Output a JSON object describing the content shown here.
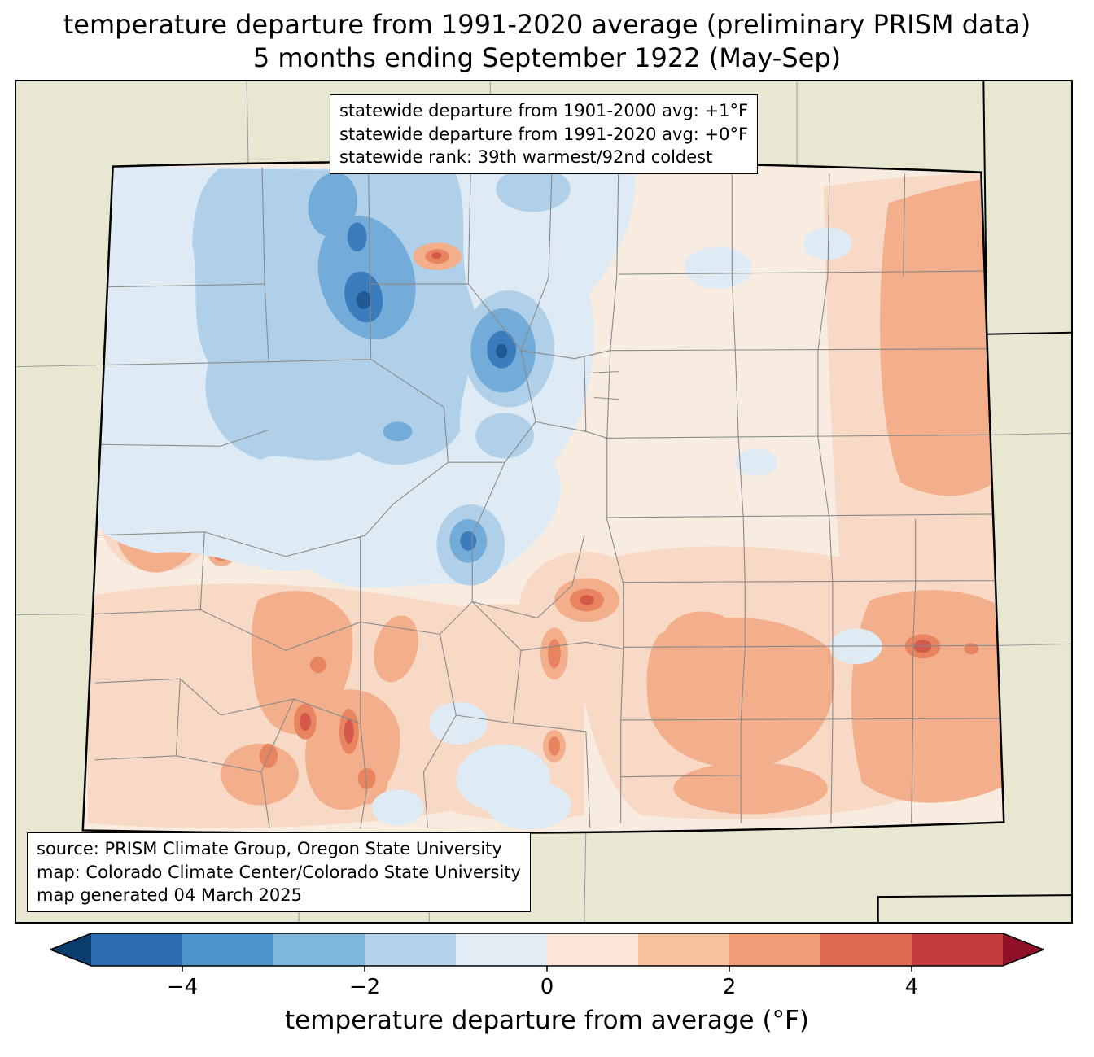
{
  "title": {
    "line1": "temperature departure from 1991-2020 average (preliminary PRISM data)",
    "line2": "5 months ending September 1922 (May-Sep)"
  },
  "stats_box": {
    "lines": [
      "statewide departure from 1901-2000 avg: +1°F",
      "statewide departure from 1991-2020 avg: +0°F",
      "statewide rank: 39th warmest/92nd coldest"
    ]
  },
  "source_box": {
    "lines": [
      "source: PRISM Climate Group, Oregon State University",
      "map: Colorado Climate Center/Colorado State University",
      "map generated 04 March 2025"
    ]
  },
  "colorbar": {
    "label": "temperature departure from average (°F)",
    "ticks": [
      "−4",
      "−2",
      "0",
      "2",
      "4"
    ],
    "tick_values": [
      -4,
      -2,
      0,
      2,
      4
    ],
    "range": [
      -5,
      5
    ],
    "segment_colors": [
      "#2b6cb3",
      "#4b93c9",
      "#7db8da",
      "#b3d3ea",
      "#e1ecf5",
      "#fbe5d6",
      "#f8c29f",
      "#f09c76",
      "#de6a51",
      "#c43b3c"
    ],
    "arrow_left": "#0b3d6f",
    "arrow_right": "#8f1127"
  },
  "map": {
    "region": "Colorado",
    "background_color": "#e8e7d2",
    "state_border_color": "#000000",
    "county_line_color": "#8a8a8a"
  }
}
